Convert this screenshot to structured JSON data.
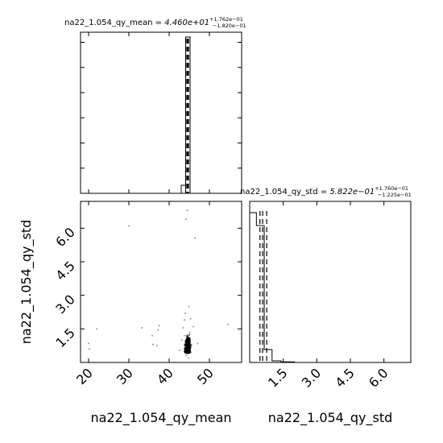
{
  "chart_data": [
    {
      "type": "histogram",
      "panel": "marginal-x",
      "variable": "na22_1.054_qy_mean",
      "title": {
        "prefix": "na22_1.054_qy_mean = ",
        "value": "4.460e+01",
        "upper": "+1.762e−01",
        "lower": "−1.820e−01"
      },
      "xlim": [
        18,
        58
      ],
      "bins": [
        {
          "x0": 43.0,
          "x1": 44.1,
          "count": 0.05
        },
        {
          "x0": 44.1,
          "x1": 45.2,
          "count": 0.97
        }
      ],
      "ylim": [
        0,
        1.0
      ],
      "quantile_lines": [
        44.42,
        44.6,
        44.78
      ],
      "tick_marks_y": 6
    },
    {
      "type": "histogram",
      "panel": "marginal-y",
      "variable": "na22_1.054_qy_std",
      "title": {
        "prefix": "na22_1.054_qy_std = ",
        "value": "5.822e−01",
        "upper": "+1.760e−01",
        "lower": "−1.225e−01"
      },
      "xlim": [
        0.0,
        7.2
      ],
      "bins": [
        {
          "x0": 0.0,
          "x1": 0.3,
          "count": 0.93
        },
        {
          "x0": 0.3,
          "x1": 0.65,
          "count": 0.85
        },
        {
          "x0": 0.65,
          "x1": 1.0,
          "count": 0.08
        },
        {
          "x0": 1.0,
          "x1": 1.4,
          "count": 0.01
        },
        {
          "x0": 1.4,
          "x1": 2.0,
          "count": 0.004
        }
      ],
      "ylim": [
        0,
        1.0
      ],
      "quantile_lines": [
        0.46,
        0.58,
        0.76
      ],
      "xticks": [
        1.5,
        3.0,
        4.5,
        6.0
      ],
      "xtick_labels": [
        "1.5",
        "3.0",
        "4.5",
        "6.0"
      ],
      "xlabel": "na22_1.054_qy_std"
    },
    {
      "type": "scatter",
      "panel": "joint",
      "x_variable": "na22_1.054_qy_mean",
      "y_variable": "na22_1.054_qy_std",
      "xlim": [
        18,
        58
      ],
      "ylim": [
        0.0,
        7.2
      ],
      "xticks": [
        20,
        30,
        40,
        50
      ],
      "xtick_labels": [
        "20",
        "30",
        "40",
        "50"
      ],
      "yticks": [
        1.5,
        3.0,
        4.5,
        6.0
      ],
      "ytick_labels": [
        "1.5",
        "3.0",
        "4.5",
        "6.0"
      ],
      "xlabel": "na22_1.054_qy_mean",
      "ylabel": "na22_1.054_qy_std",
      "core": {
        "x_center": 44.6,
        "x_spread": 0.45,
        "y_center": 0.58,
        "y_spread": 0.32,
        "n": 700
      },
      "outliers": [
        [
          20.0,
          0.85
        ],
        [
          20.2,
          0.6
        ],
        [
          22.0,
          1.5
        ],
        [
          30.0,
          6.1
        ],
        [
          33.2,
          1.55
        ],
        [
          35.8,
          1.2
        ],
        [
          36.0,
          0.8
        ],
        [
          37.0,
          0.75
        ],
        [
          37.2,
          1.45
        ],
        [
          37.5,
          1.65
        ],
        [
          42.6,
          0.55
        ],
        [
          43.2,
          1.0
        ],
        [
          43.5,
          1.55
        ],
        [
          43.8,
          1.9
        ],
        [
          44.0,
          2.2
        ],
        [
          44.2,
          6.4
        ],
        [
          44.5,
          6.8
        ],
        [
          44.9,
          2.5
        ],
        [
          45.3,
          1.95
        ],
        [
          46.0,
          1.6
        ],
        [
          46.4,
          5.55
        ],
        [
          47.1,
          0.85
        ],
        [
          54.6,
          1.7
        ],
        [
          44.3,
          0.3
        ],
        [
          44.8,
          0.2
        ],
        [
          45.5,
          0.45
        ],
        [
          43.9,
          1.2
        ],
        [
          45.1,
          1.35
        ]
      ]
    }
  ]
}
